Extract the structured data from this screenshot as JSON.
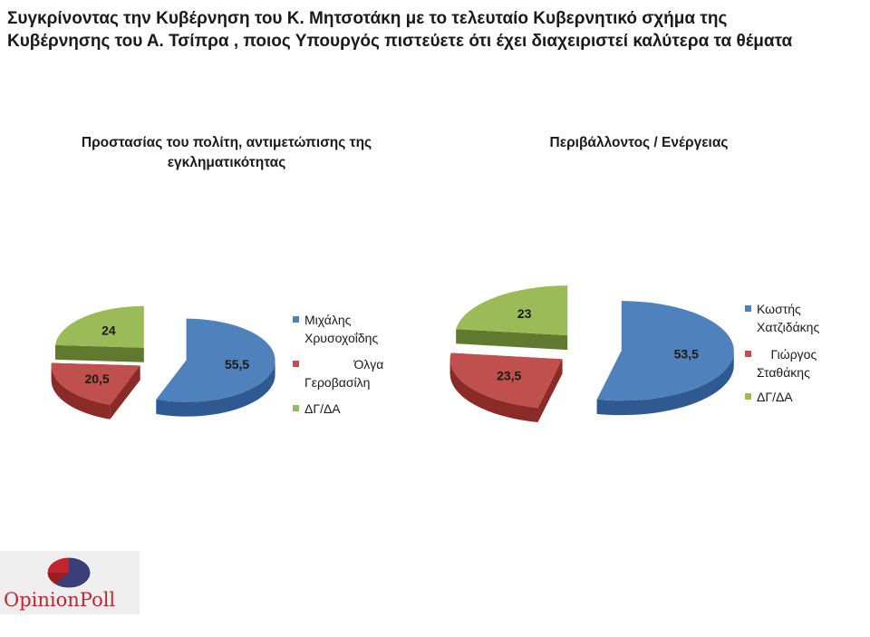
{
  "page_title": "Συγκρίνοντας την Κυβέρνηση του Κ. Μητσοτάκη με το τελευταίο Κυβερνητικό σχήμα της Κυβέρνησης  του Α. Τσίπρα , ποιος Υπουργός πιστεύετε ότι έχει διαχειριστεί καλύτερα τα θέματα",
  "colors": {
    "blue": "#4f81bd",
    "blue_dark": "#2e5a91",
    "red": "#c0504d",
    "red_dark": "#8b2b28",
    "green": "#9bbb59",
    "green_dark": "#5f7a2f"
  },
  "chart_data": [
    {
      "type": "pie",
      "title": "Προστασίας του πολίτη, αντιμετώπισης της εγκληματικότητας",
      "legend_position": "right",
      "slices": [
        {
          "label": "Μιχάλης Χρυσοχοΐδης",
          "value": 55.5,
          "value_label": "55,5",
          "color": "#4f81bd"
        },
        {
          "label": "Όλγα Γεροβασίλη",
          "value": 20.5,
          "value_label": "20,5",
          "color": "#c0504d"
        },
        {
          "label": "ΔΓ/ΔΑ",
          "value": 24,
          "value_label": "24",
          "color": "#9bbb59"
        }
      ]
    },
    {
      "type": "pie",
      "title": "Περιβάλλοντος / Ενέργειας",
      "legend_position": "right",
      "slices": [
        {
          "label": "Κωστής Χατζιδάκης",
          "value": 53.5,
          "value_label": "53,5",
          "color": "#4f81bd"
        },
        {
          "label": "Γιώργος Σταθάκης",
          "value": 23.5,
          "value_label": "23,5",
          "color": "#c0504d"
        },
        {
          "label": "ΔΓ/ΔΑ",
          "value": 23,
          "value_label": "23",
          "color": "#9bbb59"
        }
      ]
    }
  ],
  "legends": [
    [
      "Μιχάλης\nΧρυσοχοΐδης",
      "              Όλγα\nΓεροβασίλη",
      "ΔΓ/ΔΑ"
    ],
    [
      "Κωστής\nΧατζιδάκης",
      "    Γιώργος\nΣταθάκης",
      "ΔΓ/ΔΑ"
    ]
  ],
  "logo": {
    "text": "OpinionPoll"
  }
}
